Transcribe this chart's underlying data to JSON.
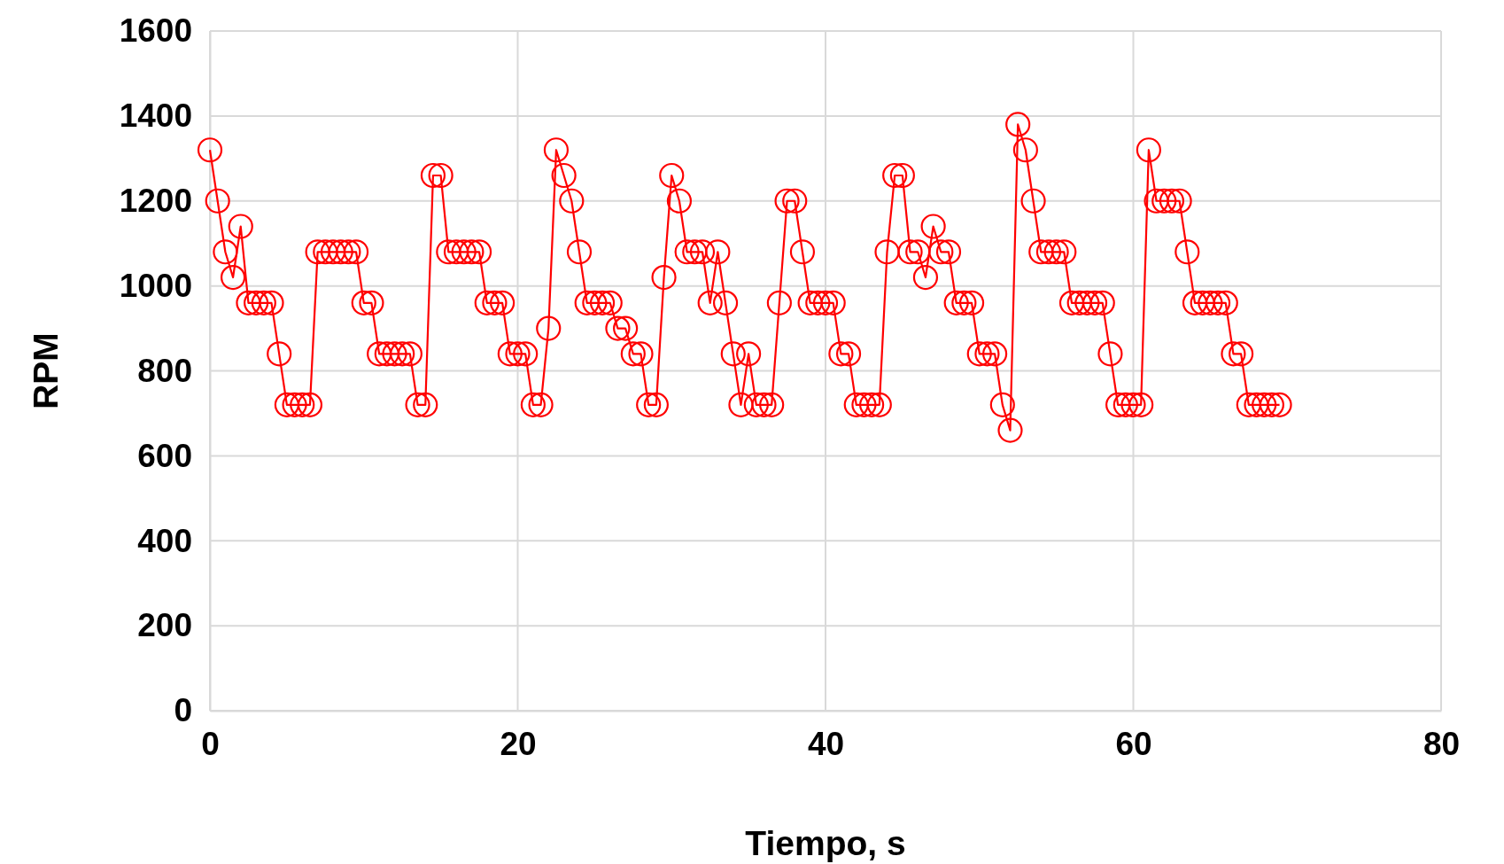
{
  "chart_data": {
    "type": "line",
    "xlabel": "Tiempo, s",
    "ylabel": "RPM",
    "xlim": [
      0,
      80
    ],
    "xticks": [
      0,
      20,
      40,
      60,
      80
    ],
    "ylim": [
      0,
      1600
    ],
    "yticks": [
      0,
      200,
      400,
      600,
      800,
      1000,
      1200,
      1400,
      1600
    ],
    "grid": true,
    "marker": "circle",
    "line_style": "solid",
    "series": [
      {
        "color": "#ff0000",
        "x": [
          0,
          0.5,
          1,
          1.5,
          2,
          2.5,
          3,
          3.5,
          4,
          4.5,
          5,
          5.5,
          6,
          6.5,
          7,
          7.5,
          8,
          8.5,
          9,
          9.5,
          10,
          10.5,
          11,
          11.5,
          12,
          12.5,
          13,
          13.5,
          14,
          14.5,
          15,
          15.5,
          16,
          16.5,
          17,
          17.5,
          18,
          18.5,
          19,
          19.5,
          20,
          20.5,
          21,
          21.5,
          22,
          22.5,
          23,
          23.5,
          24,
          24.5,
          25,
          25.5,
          26,
          26.5,
          27,
          27.5,
          28,
          28.5,
          29,
          29.5,
          30,
          30.5,
          31,
          31.5,
          32,
          32.5,
          33,
          33.5,
          34,
          34.5,
          35,
          35.5,
          36,
          36.5,
          37,
          37.5,
          38,
          38.5,
          39,
          39.5,
          40,
          40.5,
          41,
          41.5,
          42,
          42.5,
          43,
          43.5,
          44,
          44.5,
          45,
          45.5,
          46,
          46.5,
          47,
          47.5,
          48,
          48.5,
          49,
          49.5,
          50,
          50.5,
          51,
          51.5,
          52,
          52.5,
          53,
          53.5,
          54,
          54.5,
          55,
          55.5,
          56,
          56.5,
          57,
          57.5,
          58,
          58.5,
          59,
          59.5,
          60,
          60.5,
          61,
          61.5,
          62,
          62.5,
          63,
          63.5,
          64,
          64.5,
          65,
          65.5,
          66,
          66.5,
          67,
          67.5,
          68,
          68.5,
          69,
          69.5
        ],
        "values": [
          1320,
          1200,
          1080,
          1020,
          1140,
          960,
          960,
          960,
          960,
          840,
          720,
          720,
          720,
          720,
          1080,
          1080,
          1080,
          1080,
          1080,
          1080,
          960,
          960,
          840,
          840,
          840,
          840,
          840,
          720,
          720,
          1260,
          1260,
          1080,
          1080,
          1080,
          1080,
          1080,
          960,
          960,
          960,
          840,
          840,
          840,
          720,
          720,
          900,
          1320,
          1260,
          1200,
          1080,
          960,
          960,
          960,
          960,
          900,
          900,
          840,
          840,
          720,
          720,
          1020,
          1260,
          1200,
          1080,
          1080,
          1080,
          960,
          1080,
          960,
          840,
          720,
          840,
          720,
          720,
          720,
          960,
          1200,
          1200,
          1080,
          960,
          960,
          960,
          960,
          840,
          840,
          720,
          720,
          720,
          720,
          1080,
          1260,
          1260,
          1080,
          1080,
          1020,
          1140,
          1080,
          1080,
          960,
          960,
          960,
          840,
          840,
          840,
          720,
          660,
          1380,
          1320,
          1200,
          1080,
          1080,
          1080,
          1080,
          960,
          960,
          960,
          960,
          960,
          840,
          720,
          720,
          720,
          720,
          1320,
          1200,
          1200,
          1200,
          1200,
          1080,
          960,
          960,
          960,
          960,
          960,
          840,
          840,
          720,
          720,
          720,
          720,
          720
        ]
      }
    ]
  }
}
